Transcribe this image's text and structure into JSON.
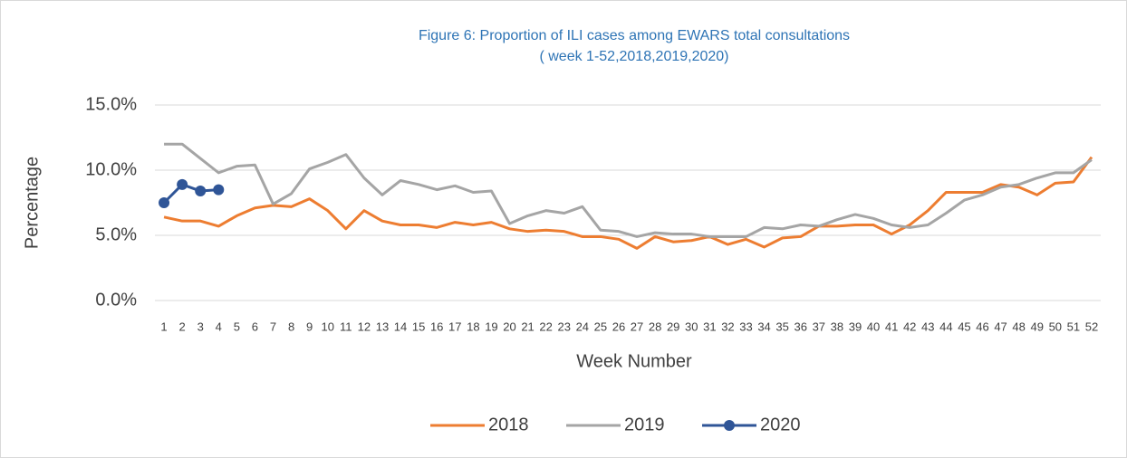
{
  "chart_data": {
    "type": "line",
    "title": "Figure 6: Proportion of ILI cases among EWARS total consultations",
    "subtitle": "( week 1-52,2018,2019,2020)",
    "x_label": "Week Number",
    "y_label": "Percentage",
    "categories": [
      "1",
      "2",
      "3",
      "4",
      "5",
      "6",
      "7",
      "8",
      "9",
      "10",
      "11",
      "12",
      "13",
      "14",
      "15",
      "16",
      "17",
      "18",
      "19",
      "20",
      "21",
      "22",
      "23",
      "24",
      "25",
      "26",
      "27",
      "28",
      "29",
      "30",
      "31",
      "32",
      "33",
      "34",
      "35",
      "36",
      "37",
      "38",
      "39",
      "40",
      "41",
      "42",
      "43",
      "44",
      "45",
      "46",
      "47",
      "48",
      "49",
      "50",
      "51",
      "52"
    ],
    "series": [
      {
        "name": "2018",
        "color": "#ed7d31",
        "marker": false,
        "values": [
          6.4,
          6.1,
          6.1,
          5.7,
          6.5,
          7.1,
          7.3,
          7.2,
          7.8,
          6.9,
          5.5,
          6.9,
          6.1,
          5.8,
          5.8,
          5.6,
          6.0,
          5.8,
          6.0,
          5.5,
          5.3,
          5.4,
          5.3,
          4.9,
          4.9,
          4.7,
          4.0,
          4.9,
          4.5,
          4.6,
          4.9,
          4.3,
          4.7,
          4.1,
          4.8,
          4.9,
          5.7,
          5.7,
          5.8,
          5.8,
          5.1,
          5.8,
          6.9,
          8.3,
          8.3,
          8.3,
          8.9,
          8.7,
          8.1,
          9.0,
          9.1,
          11.0
        ]
      },
      {
        "name": "2019",
        "color": "#a5a5a5",
        "marker": false,
        "values": [
          12.0,
          12.0,
          10.9,
          9.8,
          10.3,
          10.4,
          7.4,
          8.2,
          10.1,
          10.6,
          11.2,
          9.4,
          8.1,
          9.2,
          8.9,
          8.5,
          8.8,
          8.3,
          8.4,
          5.9,
          6.5,
          6.9,
          6.7,
          7.2,
          5.4,
          5.3,
          4.9,
          5.2,
          5.1,
          5.1,
          4.9,
          4.9,
          4.9,
          5.6,
          5.5,
          5.8,
          5.7,
          6.2,
          6.6,
          6.3,
          5.8,
          5.6,
          5.8,
          6.7,
          7.7,
          8.1,
          8.7,
          8.9,
          9.4,
          9.8,
          9.8,
          10.8
        ]
      },
      {
        "name": "2020",
        "color": "#2f5597",
        "marker": true,
        "values": [
          7.5,
          8.9,
          8.4,
          8.5,
          null,
          null,
          null,
          null,
          null,
          null,
          null,
          null,
          null,
          null,
          null,
          null,
          null,
          null,
          null,
          null,
          null,
          null,
          null,
          null,
          null,
          null,
          null,
          null,
          null,
          null,
          null,
          null,
          null,
          null,
          null,
          null,
          null,
          null,
          null,
          null,
          null,
          null,
          null,
          null,
          null,
          null,
          null,
          null,
          null,
          null,
          null,
          null
        ]
      }
    ],
    "ylim": [
      0,
      15
    ],
    "yticks": [
      {
        "value": 0,
        "label": "0.0%"
      },
      {
        "value": 5,
        "label": "5.0%"
      },
      {
        "value": 10,
        "label": "10.0%"
      },
      {
        "value": 15,
        "label": "15.0%"
      }
    ],
    "grid": true,
    "legend": "bottom"
  }
}
